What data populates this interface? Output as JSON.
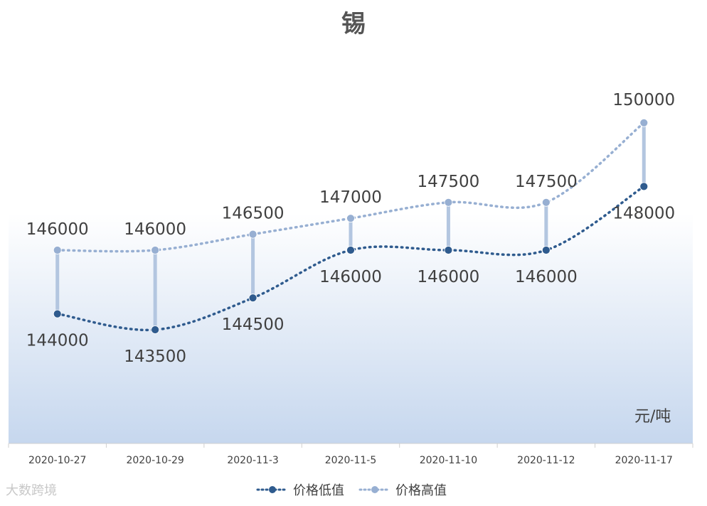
{
  "chart_data": {
    "type": "line",
    "title": "锡",
    "unit_label": "元/吨",
    "categories": [
      "2020-10-27",
      "2020-10-29",
      "2020-11-3",
      "2020-11-5",
      "2020-11-10",
      "2020-11-12",
      "2020-11-17"
    ],
    "series": [
      {
        "name": "价格低值",
        "values": [
          144000,
          143500,
          144500,
          146000,
          146000,
          146000,
          148000
        ],
        "color": "#2f5b8e",
        "label_position": "below"
      },
      {
        "name": "价格高值",
        "values": [
          146000,
          146000,
          146500,
          147000,
          147500,
          147500,
          150000
        ],
        "color": "#97afd2",
        "label_position": "above"
      }
    ],
    "high_low_lines": true,
    "high_low_color": "#b3c6e0",
    "smoothed": true,
    "line_style": "dotted",
    "grid": false,
    "y_axis_visible": false,
    "legend_position": "bottom",
    "background_gradient": [
      "#ffffff",
      "#c6d7ee"
    ]
  },
  "watermark": "大数跨境"
}
